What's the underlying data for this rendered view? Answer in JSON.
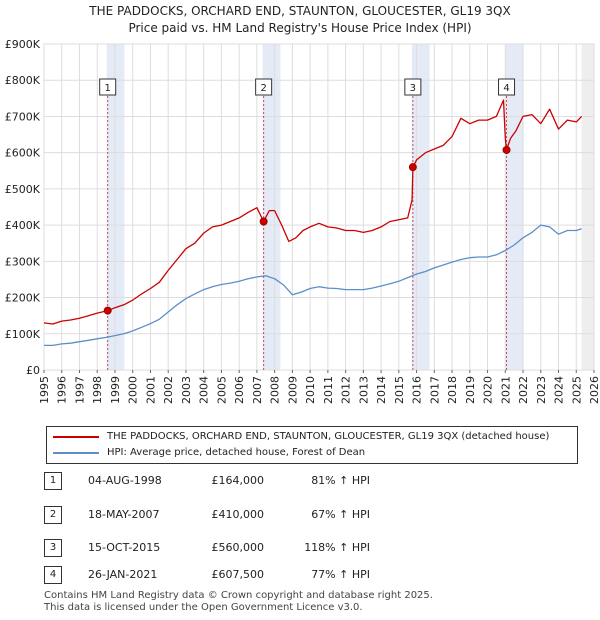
{
  "title_line1": "THE PADDOCKS, ORCHARD END, STAUNTON, GLOUCESTER, GL19 3QX",
  "title_line2": "Price paid vs. HM Land Registry's House Price Index (HPI)",
  "chart_data": {
    "type": "line",
    "xlim": [
      1995,
      2026
    ],
    "ylim": [
      0,
      900000
    ],
    "yticks": [
      0,
      100000,
      200000,
      300000,
      400000,
      500000,
      600000,
      700000,
      800000,
      900000
    ],
    "ytick_labels": [
      "£0",
      "£100K",
      "£200K",
      "£300K",
      "£400K",
      "£500K",
      "£600K",
      "£700K",
      "£800K",
      "£900K"
    ],
    "xticks": [
      1995,
      1996,
      1997,
      1998,
      1999,
      2000,
      2001,
      2002,
      2003,
      2004,
      2005,
      2006,
      2007,
      2008,
      2009,
      2010,
      2011,
      2012,
      2013,
      2014,
      2015,
      2016,
      2017,
      2018,
      2019,
      2020,
      2021,
      2022,
      2023,
      2024,
      2025,
      2026
    ],
    "series": [
      {
        "name": "THE PADDOCKS, ORCHARD END, STAUNTON, GLOUCESTER, GL19 3QX (detached house)",
        "color": "#cc0000",
        "x": [
          1995.0,
          1995.5,
          1996.0,
          1996.5,
          1997.0,
          1997.5,
          1998.0,
          1998.59,
          1999.0,
          1999.5,
          2000.0,
          2000.5,
          2001.0,
          2001.5,
          2002.0,
          2002.5,
          2003.0,
          2003.5,
          2004.0,
          2004.5,
          2005.0,
          2005.5,
          2006.0,
          2006.5,
          2007.0,
          2007.38,
          2007.7,
          2008.0,
          2008.4,
          2008.8,
          2009.2,
          2009.6,
          2010.0,
          2010.5,
          2011.0,
          2011.5,
          2012.0,
          2012.5,
          2013.0,
          2013.5,
          2014.0,
          2014.5,
          2015.0,
          2015.5,
          2015.75,
          2015.79,
          2016.0,
          2016.5,
          2017.0,
          2017.5,
          2018.0,
          2018.5,
          2019.0,
          2019.5,
          2020.0,
          2020.5,
          2020.9,
          2021.0,
          2021.07,
          2021.3,
          2021.6,
          2022.0,
          2022.5,
          2023.0,
          2023.5,
          2024.0,
          2024.5,
          2025.0,
          2025.3
        ],
        "y": [
          130000,
          127000,
          135000,
          138000,
          143000,
          150000,
          157000,
          164000,
          172000,
          180000,
          193000,
          210000,
          225000,
          242000,
          275000,
          305000,
          335000,
          350000,
          378000,
          395000,
          400000,
          410000,
          420000,
          435000,
          448000,
          410000,
          440000,
          440000,
          400000,
          355000,
          365000,
          385000,
          395000,
          405000,
          395000,
          392000,
          385000,
          385000,
          380000,
          385000,
          395000,
          410000,
          415000,
          420000,
          470000,
          560000,
          580000,
          600000,
          610000,
          620000,
          645000,
          695000,
          680000,
          690000,
          690000,
          700000,
          745000,
          640000,
          607500,
          640000,
          660000,
          700000,
          705000,
          680000,
          720000,
          665000,
          690000,
          685000,
          700000
        ]
      },
      {
        "name": "HPI: Average price, detached house, Forest of Dean",
        "color": "#5b8fc9",
        "x": [
          1995.0,
          1995.5,
          1996.0,
          1996.5,
          1997.0,
          1997.5,
          1998.0,
          1998.5,
          1999.0,
          1999.5,
          2000.0,
          2000.5,
          2001.0,
          2001.5,
          2002.0,
          2002.5,
          2003.0,
          2003.5,
          2004.0,
          2004.5,
          2005.0,
          2005.5,
          2006.0,
          2006.5,
          2007.0,
          2007.5,
          2008.0,
          2008.5,
          2009.0,
          2009.5,
          2010.0,
          2010.5,
          2011.0,
          2011.5,
          2012.0,
          2012.5,
          2013.0,
          2013.5,
          2014.0,
          2014.5,
          2015.0,
          2015.5,
          2016.0,
          2016.5,
          2017.0,
          2017.5,
          2018.0,
          2018.5,
          2019.0,
          2019.5,
          2020.0,
          2020.5,
          2021.0,
          2021.5,
          2022.0,
          2022.5,
          2023.0,
          2023.5,
          2024.0,
          2024.5,
          2025.0,
          2025.3
        ],
        "y": [
          68000,
          68000,
          72000,
          74000,
          78000,
          82000,
          86000,
          90000,
          95000,
          100000,
          108000,
          118000,
          128000,
          140000,
          160000,
          180000,
          197000,
          210000,
          222000,
          230000,
          236000,
          240000,
          245000,
          252000,
          257000,
          260000,
          252000,
          235000,
          208000,
          215000,
          225000,
          230000,
          226000,
          225000,
          222000,
          222000,
          222000,
          226000,
          232000,
          238000,
          245000,
          255000,
          265000,
          272000,
          282000,
          290000,
          298000,
          305000,
          310000,
          312000,
          312000,
          318000,
          330000,
          345000,
          365000,
          380000,
          400000,
          395000,
          375000,
          385000,
          385000,
          390000
        ]
      }
    ],
    "sales": [
      {
        "n": "1",
        "x": 1998.59,
        "y": 164000
      },
      {
        "n": "2",
        "x": 2007.38,
        "y": 410000
      },
      {
        "n": "3",
        "x": 2015.79,
        "y": 560000
      },
      {
        "n": "4",
        "x": 2021.07,
        "y": 607500
      }
    ]
  },
  "legend": {
    "property_label": "THE PADDOCKS, ORCHARD END, STAUNTON, GLOUCESTER, GL19 3QX (detached house)",
    "hpi_label": "HPI: Average price, detached house, Forest of Dean",
    "property_color": "#cc0000",
    "hpi_color": "#5b8fc9"
  },
  "sales_table": [
    {
      "n": "1",
      "date": "04-AUG-1998",
      "price": "£164,000",
      "hpi": "81% ↑ HPI"
    },
    {
      "n": "2",
      "date": "18-MAY-2007",
      "price": "£410,000",
      "hpi": "67% ↑ HPI"
    },
    {
      "n": "3",
      "date": "15-OCT-2015",
      "price": "£560,000",
      "hpi": "118% ↑ HPI"
    },
    {
      "n": "4",
      "date": "26-JAN-2021",
      "price": "£607,500",
      "hpi": "77% ↑ HPI"
    }
  ],
  "footer": {
    "line1": "Contains HM Land Registry data © Crown copyright and database right 2025.",
    "line2": "This data is licensed under the Open Government Licence v3.0."
  }
}
